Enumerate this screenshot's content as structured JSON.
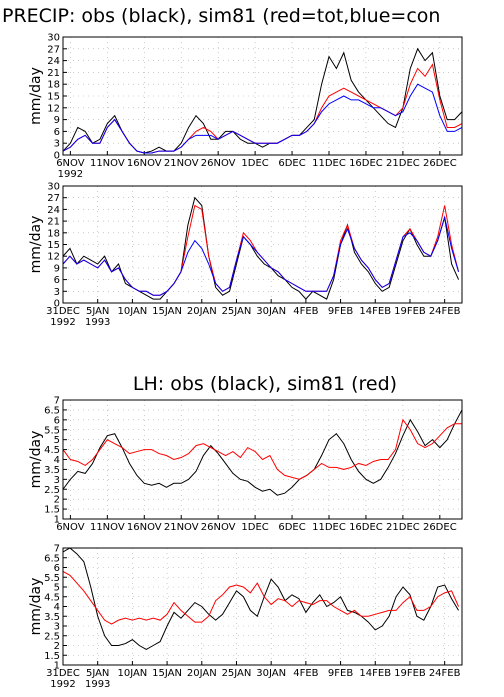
{
  "chart_data": [
    {
      "type": "line",
      "title": "PRECIP: obs (black), sim81 (red=tot,blue=con",
      "y_label": "mm/day",
      "x": [
        0,
        1,
        2,
        3,
        4,
        5,
        6,
        7,
        8,
        9,
        10,
        11,
        12,
        13,
        14,
        15,
        16,
        17,
        18,
        19,
        20,
        21,
        22,
        23,
        24,
        25,
        26,
        27,
        28,
        29,
        30,
        31,
        32,
        33,
        34,
        35,
        36,
        37,
        38,
        39,
        40,
        41,
        42,
        43,
        44,
        45,
        46,
        47,
        48,
        49,
        50,
        51,
        52,
        53,
        54
      ],
      "xlim": [
        0,
        54
      ],
      "xticks": [
        {
          "value": 1,
          "label": "6NOV",
          "sublabel": "1992"
        },
        {
          "value": 6,
          "label": "11NOV"
        },
        {
          "value": 11,
          "label": "16NOV"
        },
        {
          "value": 16,
          "label": "21NOV"
        },
        {
          "value": 21,
          "label": "26NOV"
        },
        {
          "value": 26,
          "label": "1DEC"
        },
        {
          "value": 31,
          "label": "6DEC"
        },
        {
          "value": 36,
          "label": "11DEC"
        },
        {
          "value": 41,
          "label": "16DEC"
        },
        {
          "value": 46,
          "label": "21DEC"
        },
        {
          "value": 51,
          "label": "26DEC"
        }
      ],
      "ylim": [
        0,
        30
      ],
      "yticks": [
        0,
        3,
        6,
        9,
        12,
        15,
        18,
        21,
        24,
        27,
        30
      ],
      "grid": true,
      "series": [
        {
          "color": "#000000",
          "values": [
            1,
            3,
            7,
            6,
            3,
            4,
            8,
            10,
            6,
            3,
            1,
            0.5,
            1,
            2,
            1,
            1,
            3,
            7,
            10,
            8,
            4,
            4,
            6,
            6,
            4,
            3,
            3,
            2,
            3,
            3,
            4,
            5,
            5,
            7,
            9,
            18,
            25,
            22,
            26,
            19,
            16,
            14,
            12,
            10,
            8,
            7,
            12,
            22,
            27,
            24,
            26,
            15,
            9,
            9,
            11
          ]
        },
        {
          "color": "#ff0000",
          "values": [
            1,
            2,
            4,
            5,
            3,
            3,
            7,
            9,
            6,
            3,
            1,
            0.5,
            0.5,
            1,
            1,
            1,
            2,
            4,
            6,
            7,
            6,
            4,
            5,
            6,
            5,
            4,
            3,
            3,
            3,
            3,
            4,
            5,
            5,
            6,
            8,
            12,
            15,
            16,
            17,
            16,
            15,
            14,
            13,
            12,
            11,
            10,
            12,
            18,
            22,
            20,
            23,
            14,
            7,
            7,
            8
          ]
        },
        {
          "color": "#0000ff",
          "values": [
            1,
            2,
            4,
            5,
            3,
            3,
            7,
            9,
            6,
            3,
            1,
            0.5,
            0.5,
            1,
            1,
            1,
            2,
            4,
            5,
            5,
            5,
            4,
            5,
            6,
            5,
            4,
            3,
            3,
            3,
            3,
            4,
            5,
            5,
            6,
            8,
            11,
            13,
            14,
            15,
            14,
            14,
            13,
            12,
            12,
            11,
            10,
            11,
            15,
            18,
            17,
            16,
            10,
            6,
            6,
            7
          ]
        }
      ]
    },
    {
      "type": "line",
      "y_label": "mm/day",
      "x": [
        0,
        1,
        2,
        3,
        4,
        5,
        6,
        7,
        8,
        9,
        10,
        11,
        12,
        13,
        14,
        15,
        16,
        17,
        18,
        19,
        20,
        21,
        22,
        23,
        24,
        25,
        26,
        27,
        28,
        29,
        30,
        31,
        32,
        33,
        34,
        35,
        36,
        37,
        38,
        39,
        40,
        41,
        42,
        43,
        44,
        45,
        46,
        47,
        48,
        49,
        50,
        51,
        52,
        53,
        54,
        55,
        56,
        57
      ],
      "xlim": [
        0,
        57.5
      ],
      "xticks": [
        {
          "value": 0,
          "label": "31DEC",
          "sublabel": "1992"
        },
        {
          "value": 5,
          "label": "5JAN",
          "sublabel": "1993"
        },
        {
          "value": 10,
          "label": "10JAN"
        },
        {
          "value": 15,
          "label": "15JAN"
        },
        {
          "value": 20,
          "label": "20JAN"
        },
        {
          "value": 25,
          "label": "25JAN"
        },
        {
          "value": 30,
          "label": "30JAN"
        },
        {
          "value": 35,
          "label": "4FEB"
        },
        {
          "value": 40,
          "label": "9FEB"
        },
        {
          "value": 45,
          "label": "14FEB"
        },
        {
          "value": 50,
          "label": "19FEB"
        },
        {
          "value": 55,
          "label": "24FEB"
        }
      ],
      "ylim": [
        0,
        30
      ],
      "yticks": [
        0,
        3,
        6,
        9,
        12,
        15,
        18,
        21,
        24,
        27,
        30
      ],
      "grid": true,
      "series": [
        {
          "color": "#000000",
          "values": [
            12,
            14,
            10,
            12,
            11,
            10,
            12,
            8,
            10,
            5,
            4,
            3,
            2,
            1,
            1,
            3,
            5,
            8,
            20,
            27,
            25,
            12,
            4,
            2,
            3,
            10,
            17,
            15,
            12,
            10,
            9,
            7,
            6,
            4,
            3,
            1,
            3,
            2,
            1,
            6,
            15,
            20,
            13,
            10,
            8,
            5,
            3,
            4,
            10,
            16,
            19,
            15,
            12,
            12,
            16,
            22,
            10,
            6
          ]
        },
        {
          "color": "#ff0000",
          "values": [
            10,
            12,
            10,
            11,
            10,
            9,
            11,
            8,
            9,
            6,
            4,
            3,
            3,
            2,
            2,
            3,
            5,
            8,
            17,
            25,
            24,
            12,
            5,
            3,
            4,
            11,
            18,
            16,
            13,
            11,
            9,
            8,
            6,
            5,
            4,
            3,
            3,
            3,
            3,
            7,
            16,
            20,
            14,
            11,
            9,
            6,
            4,
            5,
            11,
            17,
            19,
            16,
            13,
            12,
            17,
            25,
            15,
            8
          ]
        },
        {
          "color": "#0000ff",
          "values": [
            10,
            12,
            10,
            11,
            10,
            9,
            11,
            8,
            9,
            6,
            4,
            3,
            3,
            2,
            2,
            3,
            5,
            8,
            13,
            16,
            14,
            10,
            5,
            3,
            4,
            11,
            17,
            15,
            13,
            11,
            9,
            8,
            6,
            5,
            4,
            3,
            3,
            3,
            3,
            7,
            15,
            19,
            14,
            11,
            9,
            6,
            4,
            5,
            11,
            17,
            18,
            16,
            13,
            12,
            16,
            22,
            14,
            8
          ]
        }
      ]
    },
    {
      "type": "line",
      "title": "LH: obs (black), sim81 (red)",
      "y_label": "mm/day",
      "x": [
        0,
        1,
        2,
        3,
        4,
        5,
        6,
        7,
        8,
        9,
        10,
        11,
        12,
        13,
        14,
        15,
        16,
        17,
        18,
        19,
        20,
        21,
        22,
        23,
        24,
        25,
        26,
        27,
        28,
        29,
        30,
        31,
        32,
        33,
        34,
        35,
        36,
        37,
        38,
        39,
        40,
        41,
        42,
        43,
        44,
        45,
        46,
        47,
        48,
        49,
        50,
        51,
        52,
        53,
        54
      ],
      "xlim": [
        0,
        54
      ],
      "xticks": [
        {
          "value": 1,
          "label": "6NOV"
        },
        {
          "value": 6,
          "label": "11NOV"
        },
        {
          "value": 11,
          "label": "16NOV"
        },
        {
          "value": 16,
          "label": "21NOV"
        },
        {
          "value": 21,
          "label": "26NOV"
        },
        {
          "value": 26,
          "label": "1DEC"
        },
        {
          "value": 31,
          "label": "6DEC"
        },
        {
          "value": 36,
          "label": "11DEC"
        },
        {
          "value": 41,
          "label": "16DEC"
        },
        {
          "value": 46,
          "label": "21DEC"
        },
        {
          "value": 51,
          "label": "26DEC"
        }
      ],
      "ylim": [
        1,
        7
      ],
      "yticks": [
        1,
        1.5,
        2,
        2.5,
        3,
        3.5,
        4,
        4.5,
        5,
        5.5,
        6,
        6.5,
        7
      ],
      "grid": true,
      "series": [
        {
          "color": "#000000",
          "values": [
            2.5,
            3.0,
            3.4,
            3.3,
            3.8,
            4.6,
            5.2,
            5.3,
            4.6,
            3.8,
            3.2,
            2.8,
            2.7,
            2.8,
            2.6,
            2.8,
            2.8,
            3.0,
            3.4,
            4.2,
            4.7,
            4.3,
            3.8,
            3.3,
            3.0,
            2.9,
            2.6,
            2.4,
            2.5,
            2.2,
            2.3,
            2.6,
            3.0,
            3.2,
            3.5,
            4.2,
            5.0,
            5.3,
            4.8,
            4.0,
            3.4,
            3.0,
            2.8,
            3.0,
            3.6,
            4.3,
            5.2,
            6.0,
            5.4,
            4.7,
            5.0,
            4.6,
            5.0,
            5.8,
            6.5
          ]
        },
        {
          "color": "#ff0000",
          "values": [
            4.5,
            4.0,
            3.9,
            3.7,
            4.0,
            4.5,
            5.0,
            4.8,
            4.6,
            4.3,
            4.4,
            4.5,
            4.5,
            4.3,
            4.2,
            4.0,
            4.1,
            4.3,
            4.7,
            4.8,
            4.6,
            4.4,
            4.2,
            4.4,
            4.1,
            4.6,
            4.4,
            4.0,
            4.2,
            3.5,
            3.2,
            3.1,
            3.0,
            3.2,
            3.5,
            3.8,
            3.6,
            3.6,
            3.5,
            3.6,
            3.8,
            3.7,
            3.9,
            4.0,
            4.0,
            4.5,
            6.0,
            5.5,
            4.8,
            4.6,
            4.8,
            5.2,
            5.6,
            5.8,
            5.8
          ]
        }
      ]
    },
    {
      "type": "line",
      "y_label": "mm/day",
      "x": [
        0,
        1,
        2,
        3,
        4,
        5,
        6,
        7,
        8,
        9,
        10,
        11,
        12,
        13,
        14,
        15,
        16,
        17,
        18,
        19,
        20,
        21,
        22,
        23,
        24,
        25,
        26,
        27,
        28,
        29,
        30,
        31,
        32,
        33,
        34,
        35,
        36,
        37,
        38,
        39,
        40,
        41,
        42,
        43,
        44,
        45,
        46,
        47,
        48,
        49,
        50,
        51,
        52,
        53,
        54,
        55,
        56,
        57
      ],
      "xlim": [
        0,
        57.5
      ],
      "xticks": [
        {
          "value": 0,
          "label": "31DEC",
          "sublabel": "1992"
        },
        {
          "value": 5,
          "label": "5JAN",
          "sublabel": "1993"
        },
        {
          "value": 10,
          "label": "10JAN"
        },
        {
          "value": 15,
          "label": "15JAN"
        },
        {
          "value": 20,
          "label": "20JAN"
        },
        {
          "value": 25,
          "label": "25JAN"
        },
        {
          "value": 30,
          "label": "30JAN"
        },
        {
          "value": 35,
          "label": "4FEB"
        },
        {
          "value": 40,
          "label": "9FEB"
        },
        {
          "value": 45,
          "label": "14FEB"
        },
        {
          "value": 50,
          "label": "19FEB"
        },
        {
          "value": 55,
          "label": "24FEB"
        }
      ],
      "ylim": [
        1,
        7
      ],
      "yticks": [
        1,
        1.5,
        2,
        2.5,
        3,
        3.5,
        4,
        4.5,
        5,
        5.5,
        6,
        6.5,
        7
      ],
      "grid": true,
      "series": [
        {
          "color": "#000000",
          "values": [
            6.8,
            7.0,
            6.7,
            6.3,
            5.0,
            3.5,
            2.5,
            2.0,
            2.0,
            2.1,
            2.3,
            2.0,
            1.8,
            2.0,
            2.2,
            3.0,
            3.7,
            3.4,
            3.8,
            4.2,
            4.0,
            3.6,
            3.3,
            3.6,
            4.2,
            4.8,
            4.5,
            3.8,
            3.5,
            4.5,
            5.4,
            5.0,
            4.3,
            4.6,
            4.4,
            3.7,
            4.2,
            4.6,
            4.0,
            4.2,
            4.5,
            3.8,
            3.7,
            3.5,
            3.2,
            2.8,
            3.0,
            3.5,
            4.5,
            5.0,
            4.6,
            3.5,
            3.3,
            4.0,
            5.0,
            5.1,
            4.4,
            3.8
          ]
        },
        {
          "color": "#ff0000",
          "values": [
            5.8,
            5.6,
            5.2,
            4.8,
            4.3,
            3.8,
            3.3,
            3.1,
            3.3,
            3.4,
            3.3,
            3.4,
            3.3,
            3.4,
            3.3,
            3.6,
            4.2,
            3.8,
            3.5,
            3.2,
            3.2,
            3.5,
            4.3,
            4.6,
            5.0,
            5.1,
            5.0,
            4.7,
            5.2,
            4.5,
            4.1,
            4.4,
            4.3,
            4.0,
            4.3,
            4.2,
            4.1,
            4.3,
            4.3,
            4.0,
            3.8,
            3.6,
            3.8,
            3.5,
            3.5,
            3.6,
            3.7,
            3.8,
            3.8,
            4.2,
            4.5,
            3.8,
            3.8,
            4.0,
            4.5,
            4.7,
            4.8,
            4.0
          ]
        }
      ]
    }
  ]
}
